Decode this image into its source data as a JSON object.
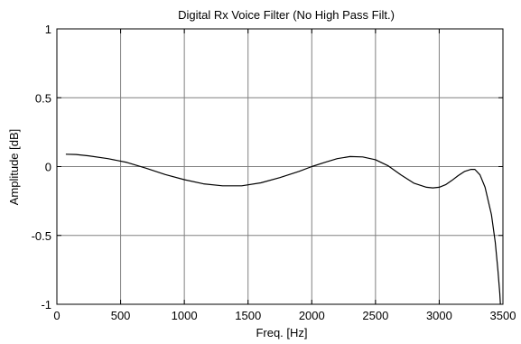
{
  "chart_data": {
    "type": "line",
    "title": "Digital Rx Voice Filter (No High Pass Filt.)",
    "xlabel": "Freq. [Hz]",
    "ylabel": "Amplitude [dB]",
    "xlim": [
      0,
      3500
    ],
    "ylim": [
      -1,
      1
    ],
    "x_ticks": [
      0,
      500,
      1000,
      1500,
      2000,
      2500,
      3000,
      3500
    ],
    "y_ticks": [
      -1,
      -0.5,
      0,
      0.5,
      1
    ],
    "x_tick_labels": [
      "0",
      "500",
      "1000",
      "1500",
      "2000",
      "2500",
      "3000",
      "3500"
    ],
    "y_tick_labels": [
      "-1",
      "-0.5",
      "0",
      "0.5",
      "1"
    ],
    "grid": true,
    "series": [
      {
        "color": "#000000",
        "x": [
          70,
          150,
          250,
          400,
          550,
          700,
          850,
          1000,
          1150,
          1300,
          1450,
          1600,
          1750,
          1900,
          2000,
          2100,
          2200,
          2300,
          2400,
          2500,
          2600,
          2700,
          2800,
          2900,
          2950,
          3000,
          3050,
          3100,
          3150,
          3200,
          3250,
          3280,
          3320,
          3360,
          3410,
          3440,
          3460,
          3475,
          3480
        ],
        "y": [
          0.09,
          0.088,
          0.078,
          0.058,
          0.03,
          -0.012,
          -0.058,
          -0.095,
          -0.125,
          -0.14,
          -0.14,
          -0.118,
          -0.08,
          -0.035,
          0.0,
          0.03,
          0.058,
          0.073,
          0.07,
          0.05,
          0.005,
          -0.06,
          -0.12,
          -0.15,
          -0.155,
          -0.15,
          -0.132,
          -0.1,
          -0.065,
          -0.035,
          -0.02,
          -0.02,
          -0.06,
          -0.15,
          -0.35,
          -0.55,
          -0.75,
          -0.92,
          -1.0
        ]
      }
    ]
  }
}
